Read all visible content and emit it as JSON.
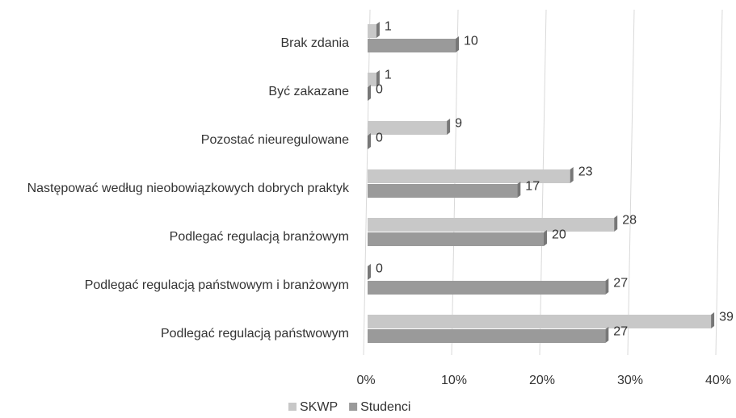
{
  "chart_data": {
    "type": "bar",
    "orientation": "horizontal",
    "categories": [
      "Brak zdania",
      "Być zakazane",
      "Pozostać nieuregulowane",
      "Następować według nieobowiązkowych dobrych praktyk",
      "Podlegać regulacją branżowym",
      "Podlegać regulacją państwowym i branżowym",
      "Podlegać regulacją państwowym"
    ],
    "series": [
      {
        "name": "SKWP",
        "color": "#c8c8c8",
        "values": [
          1,
          1,
          9,
          23,
          28,
          0,
          39
        ]
      },
      {
        "name": "Studenci",
        "color": "#9a9a9a",
        "values": [
          10,
          0,
          0,
          17,
          20,
          27,
          27
        ]
      }
    ],
    "xlim": [
      0,
      40
    ],
    "xticks": [
      {
        "value": 0,
        "label": "0%"
      },
      {
        "value": 10,
        "label": "10%"
      },
      {
        "value": 20,
        "label": "20%"
      },
      {
        "value": 30,
        "label": "30%"
      },
      {
        "value": 40,
        "label": "40%"
      }
    ],
    "grid": true,
    "legend": "bottom"
  }
}
